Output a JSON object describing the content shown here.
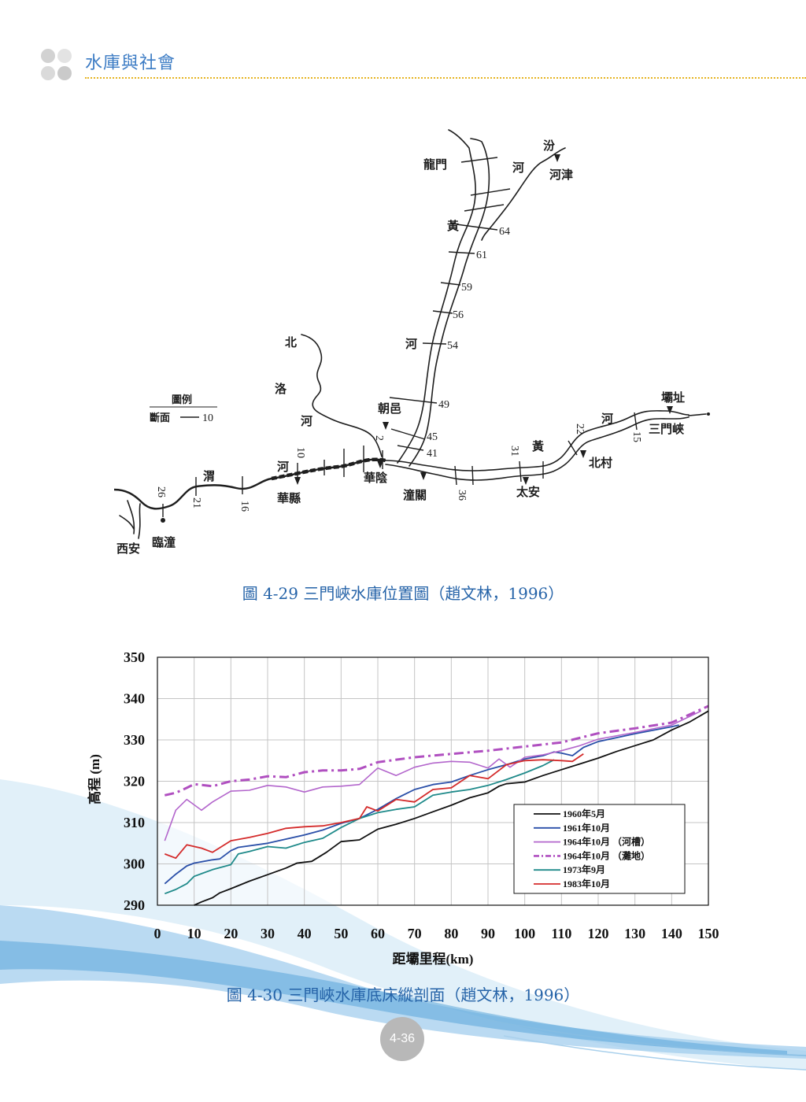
{
  "header": {
    "title": "水庫與社會"
  },
  "map": {
    "labels": {
      "longmen": "龍門",
      "fen": "汾",
      "fen_he": "河",
      "hejin": "河津",
      "huang_north": "黃",
      "he_north": "河",
      "bei": "北",
      "luo": "洛",
      "luo_he": "河",
      "chaoyi": "朝邑",
      "wei": "渭",
      "wei_he": "河",
      "huaxian": "華縣",
      "huayin": "華陰",
      "tongguan": "潼關",
      "huang_east": "黃",
      "taian": "太安",
      "beicun": "北村",
      "he_east": "河",
      "sanmenxia": "三門峽",
      "bazhi": "壩址",
      "lintong": "臨潼",
      "xian": "西安"
    },
    "section_numbers": [
      "64",
      "61",
      "59",
      "56",
      "54",
      "49",
      "45",
      "41",
      "2",
      "10",
      "16",
      "21",
      "26",
      "36",
      "31",
      "22",
      "15"
    ],
    "legend": {
      "title": "圖例",
      "section_label": "斷面",
      "section_sample": "10"
    }
  },
  "captions": {
    "figure_1": "圖 4-29  三門峽水庫位置圖（趙文林，1996）",
    "figure_2": "圖 4-30  三門峽水庫底床縱剖面（趙文林，1996）"
  },
  "page_number": "4-36",
  "chart_data": {
    "type": "line",
    "xlabel": "距壩里程(km)",
    "ylabel": "高程 (m)",
    "xlim": [
      0,
      150
    ],
    "ylim": [
      290,
      350
    ],
    "xticks": [
      0,
      10,
      20,
      30,
      40,
      50,
      60,
      70,
      80,
      90,
      100,
      110,
      120,
      130,
      140,
      150
    ],
    "yticks": [
      290,
      300,
      310,
      320,
      330,
      340,
      350
    ],
    "grid": true,
    "legend_position": "lower-right",
    "series": [
      {
        "name": "1960年5月",
        "color": "#111111",
        "dashed": false,
        "x": [
          10,
          12,
          15,
          17,
          20,
          25,
          30,
          35,
          38,
          42,
          46,
          50,
          55,
          60,
          65,
          70,
          75,
          80,
          85,
          90,
          93,
          95,
          100,
          105,
          110,
          115,
          120,
          125,
          130,
          135,
          140,
          145,
          150
        ],
        "y": [
          290,
          290.8,
          291.8,
          293,
          294,
          295.8,
          297.4,
          299,
          300.2,
          300.6,
          302.8,
          305.4,
          305.8,
          308.4,
          309.6,
          311,
          312.6,
          314.2,
          316,
          317.2,
          318.8,
          319.4,
          319.8,
          321.4,
          322.8,
          324.2,
          325.6,
          327.2,
          328.6,
          330,
          332.4,
          334.4,
          337
        ]
      },
      {
        "name": "1961年10月",
        "color": "#2a4fa8",
        "dashed": false,
        "x": [
          2,
          5,
          8,
          10,
          15,
          17,
          20,
          22,
          30,
          40,
          45,
          50,
          55,
          60,
          65,
          70,
          75,
          80,
          85,
          90,
          95,
          100,
          105,
          108,
          110,
          113,
          116,
          120,
          130,
          140,
          142
        ],
        "y": [
          295.2,
          297.5,
          299.5,
          300.2,
          301,
          301.2,
          303.2,
          304,
          305,
          307,
          308.2,
          309.8,
          311,
          313.2,
          315.8,
          318,
          319.2,
          319.8,
          321.4,
          322.8,
          324,
          325.4,
          326.2,
          327.1,
          326.8,
          326.2,
          328.2,
          329.6,
          331.5,
          333.2,
          333.6
        ]
      },
      {
        "name": "1964年10月 （河槽）",
        "color": "#b366cc",
        "dashed": false,
        "x": [
          2,
          5,
          8,
          12,
          15,
          20,
          25,
          30,
          35,
          40,
          45,
          50,
          55,
          60,
          65,
          70,
          75,
          80,
          85,
          90,
          93,
          96,
          100,
          105,
          110,
          115,
          120,
          130,
          140,
          148
        ],
        "y": [
          305.6,
          313,
          315.6,
          313,
          315,
          317.6,
          317.8,
          319,
          318.6,
          317.4,
          318.6,
          318.8,
          319.2,
          323.2,
          321.4,
          323.4,
          324.4,
          324.8,
          324.6,
          323.2,
          325.4,
          323.4,
          325.8,
          326.4,
          327.4,
          328.6,
          330.2,
          331.8,
          333.6,
          337
        ]
      },
      {
        "name": "1964年10月 （灘地）",
        "color": "#b04fc0",
        "dashed": true,
        "x": [
          2,
          5,
          8,
          10,
          15,
          20,
          25,
          30,
          35,
          40,
          45,
          50,
          55,
          60,
          70,
          80,
          90,
          100,
          110,
          120,
          130,
          140,
          150
        ],
        "y": [
          316.6,
          317.2,
          318.4,
          319.3,
          318.8,
          320,
          320.4,
          321.2,
          321,
          322.2,
          322.6,
          322.6,
          323,
          324.6,
          325.8,
          326.6,
          327.4,
          328.4,
          329.4,
          331.6,
          332.8,
          334.2,
          338.2
        ]
      },
      {
        "name": "1973年9月",
        "color": "#1f8a8a",
        "dashed": false,
        "x": [
          2,
          5,
          8,
          10,
          15,
          20,
          22,
          25,
          30,
          35,
          40,
          45,
          50,
          55,
          60,
          65,
          70,
          75,
          80,
          85,
          90,
          95,
          100,
          105,
          108
        ],
        "y": [
          292.8,
          293.8,
          295.2,
          297,
          298.6,
          299.8,
          302.4,
          303,
          304.2,
          303.8,
          305.2,
          306.2,
          308.8,
          311,
          312.4,
          313.2,
          313.8,
          316.6,
          317.4,
          318,
          319,
          320.4,
          322,
          323.8,
          325.2
        ]
      },
      {
        "name": "1983年10月",
        "color": "#d42b2b",
        "dashed": false,
        "x": [
          2,
          5,
          8,
          12,
          15,
          20,
          25,
          30,
          35,
          40,
          45,
          50,
          55,
          57,
          60,
          65,
          70,
          75,
          80,
          85,
          90,
          95,
          100,
          105,
          110,
          113,
          116
        ],
        "y": [
          302.4,
          301.4,
          304.6,
          303.8,
          302.8,
          305.6,
          306.4,
          307.4,
          308.6,
          309,
          309.2,
          310,
          311,
          313.8,
          312.8,
          315.6,
          315,
          318,
          318.4,
          321.4,
          320.6,
          324,
          325,
          325.2,
          325,
          324.8,
          326.6
        ]
      }
    ]
  }
}
